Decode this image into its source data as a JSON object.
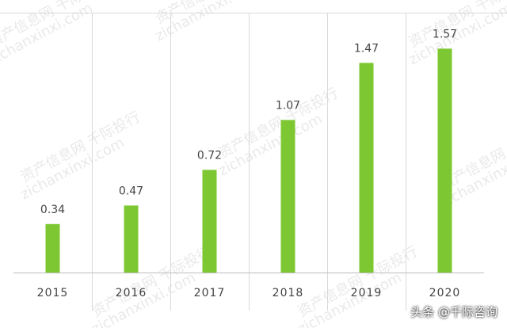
{
  "chart_data": {
    "type": "bar",
    "categories": [
      "2015",
      "2016",
      "2017",
      "2018",
      "2019",
      "2020"
    ],
    "values": [
      0.34,
      0.47,
      0.72,
      1.07,
      1.47,
      1.57
    ],
    "data_labels": [
      "0.34",
      "0.47",
      "0.72",
      "1.07",
      "1.47",
      "1.57"
    ],
    "title": "",
    "xlabel": "",
    "ylabel": "",
    "ylim": [
      0,
      1.8
    ],
    "grid": "vertical-separators",
    "legend": "none",
    "bar_color": "#7dc832"
  },
  "watermark": {
    "lines": [
      "资产信息网 千际投行",
      "zichanxinxi.com"
    ]
  },
  "credit": {
    "text": "头条 @千际咨询"
  }
}
